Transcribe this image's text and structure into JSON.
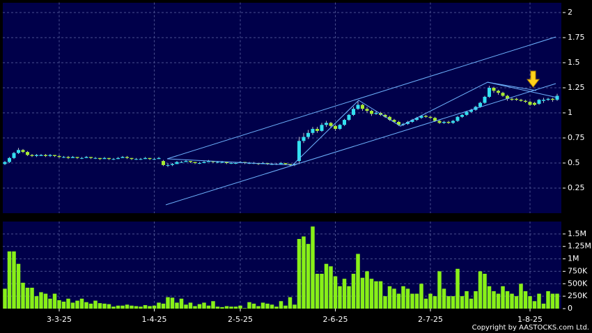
{
  "chart_data": {
    "type": "candlestick",
    "categories": [
      null,
      null,
      null,
      null,
      null,
      null,
      null,
      null,
      null,
      null,
      null,
      null,
      "3-3-25",
      null,
      null,
      null,
      null,
      null,
      null,
      null,
      null,
      null,
      null,
      null,
      null,
      null,
      null,
      null,
      null,
      null,
      null,
      null,
      null,
      "1-4-25",
      null,
      null,
      null,
      null,
      null,
      null,
      null,
      null,
      null,
      null,
      null,
      null,
      null,
      null,
      null,
      null,
      null,
      null,
      "2-5-25",
      null,
      null,
      null,
      null,
      null,
      null,
      null,
      null,
      null,
      null,
      null,
      null,
      null,
      null,
      null,
      null,
      null,
      null,
      null,
      null,
      "2-6-25",
      null,
      null,
      null,
      null,
      null,
      null,
      null,
      null,
      null,
      null,
      null,
      null,
      null,
      null,
      null,
      null,
      null,
      null,
      null,
      null,
      "2-7-25",
      null,
      null,
      null,
      null,
      null,
      null,
      null,
      null,
      null,
      null,
      null,
      null,
      null,
      null,
      null,
      null,
      null,
      null,
      null,
      null,
      null,
      "1-8-25",
      null,
      null,
      null,
      null,
      null,
      null
    ],
    "ohlc": [
      [
        0.49,
        0.52,
        0.48,
        0.51
      ],
      [
        0.51,
        0.56,
        0.5,
        0.55
      ],
      [
        0.55,
        0.61,
        0.54,
        0.6
      ],
      [
        0.6,
        0.65,
        0.59,
        0.63
      ],
      [
        0.63,
        0.64,
        0.6,
        0.61
      ],
      [
        0.61,
        0.62,
        0.57,
        0.58
      ],
      [
        0.58,
        0.59,
        0.56,
        0.57
      ],
      [
        0.57,
        0.59,
        0.56,
        0.58
      ],
      [
        0.57,
        0.59,
        0.57,
        0.58
      ],
      [
        0.58,
        0.59,
        0.56,
        0.57
      ],
      [
        0.57,
        0.59,
        0.56,
        0.58
      ],
      [
        0.58,
        0.58,
        0.56,
        0.57
      ],
      [
        0.57,
        0.58,
        0.55,
        0.56
      ],
      [
        0.56,
        0.57,
        0.55,
        0.56
      ],
      [
        0.56,
        0.57,
        0.54,
        0.55
      ],
      [
        0.55,
        0.57,
        0.55,
        0.56
      ],
      [
        0.56,
        0.56,
        0.54,
        0.55
      ],
      [
        0.55,
        0.56,
        0.54,
        0.55
      ],
      [
        0.55,
        0.57,
        0.55,
        0.56
      ],
      [
        0.56,
        0.56,
        0.54,
        0.55
      ],
      [
        0.55,
        0.56,
        0.54,
        0.55
      ],
      [
        0.55,
        0.55,
        0.53,
        0.54
      ],
      [
        0.54,
        0.56,
        0.54,
        0.55
      ],
      [
        0.55,
        0.55,
        0.53,
        0.54
      ],
      [
        0.54,
        0.55,
        0.53,
        0.54
      ],
      [
        0.54,
        0.56,
        0.54,
        0.55
      ],
      [
        0.55,
        0.57,
        0.55,
        0.56
      ],
      [
        0.56,
        0.57,
        0.54,
        0.55
      ],
      [
        0.55,
        0.55,
        0.53,
        0.54
      ],
      [
        0.54,
        0.55,
        0.53,
        0.54
      ],
      [
        0.54,
        0.55,
        0.53,
        0.54
      ],
      [
        0.54,
        0.56,
        0.54,
        0.55
      ],
      [
        0.55,
        0.55,
        0.53,
        0.54
      ],
      [
        0.54,
        0.55,
        0.53,
        0.54
      ],
      [
        0.54,
        0.56,
        0.54,
        0.55
      ],
      [
        0.52,
        0.53,
        0.47,
        0.48
      ],
      [
        0.48,
        0.5,
        0.46,
        0.48
      ],
      [
        0.48,
        0.5,
        0.47,
        0.49
      ],
      [
        0.49,
        0.52,
        0.49,
        0.51
      ],
      [
        0.51,
        0.52,
        0.5,
        0.51
      ],
      [
        0.51,
        0.53,
        0.51,
        0.52
      ],
      [
        0.52,
        0.52,
        0.5,
        0.51
      ],
      [
        0.51,
        0.51,
        0.49,
        0.5
      ],
      [
        0.5,
        0.51,
        0.49,
        0.5
      ],
      [
        0.5,
        0.52,
        0.5,
        0.51
      ],
      [
        0.51,
        0.53,
        0.51,
        0.52
      ],
      [
        0.52,
        0.52,
        0.5,
        0.51
      ],
      [
        0.51,
        0.52,
        0.5,
        0.51
      ],
      [
        0.51,
        0.52,
        0.5,
        0.51
      ],
      [
        0.51,
        0.51,
        0.49,
        0.5
      ],
      [
        0.5,
        0.51,
        0.49,
        0.5
      ],
      [
        0.5,
        0.51,
        0.49,
        0.5
      ],
      [
        0.5,
        0.52,
        0.5,
        0.51
      ],
      [
        0.51,
        0.51,
        0.49,
        0.5
      ],
      [
        0.5,
        0.51,
        0.49,
        0.5
      ],
      [
        0.5,
        0.51,
        0.49,
        0.5
      ],
      [
        0.5,
        0.5,
        0.48,
        0.49
      ],
      [
        0.49,
        0.51,
        0.49,
        0.5
      ],
      [
        0.5,
        0.5,
        0.48,
        0.49
      ],
      [
        0.49,
        0.5,
        0.48,
        0.49
      ],
      [
        0.49,
        0.5,
        0.48,
        0.49
      ],
      [
        0.49,
        0.51,
        0.49,
        0.5
      ],
      [
        0.5,
        0.5,
        0.48,
        0.49
      ],
      [
        0.49,
        0.49,
        0.47,
        0.48
      ],
      [
        0.48,
        0.5,
        0.47,
        0.49
      ],
      [
        0.52,
        0.76,
        0.49,
        0.72
      ],
      [
        0.72,
        0.8,
        0.7,
        0.76
      ],
      [
        0.76,
        0.83,
        0.74,
        0.8
      ],
      [
        0.8,
        0.86,
        0.78,
        0.84
      ],
      [
        0.84,
        0.86,
        0.8,
        0.82
      ],
      [
        0.82,
        0.9,
        0.81,
        0.88
      ],
      [
        0.88,
        0.92,
        0.86,
        0.9
      ],
      [
        0.9,
        0.91,
        0.85,
        0.87
      ],
      [
        0.87,
        0.88,
        0.82,
        0.84
      ],
      [
        0.84,
        0.89,
        0.83,
        0.88
      ],
      [
        0.88,
        0.94,
        0.87,
        0.93
      ],
      [
        0.93,
        0.99,
        0.92,
        0.98
      ],
      [
        0.98,
        1.06,
        0.97,
        1.04
      ],
      [
        1.04,
        1.12,
        1.03,
        1.08
      ],
      [
        1.08,
        1.09,
        1.02,
        1.04
      ],
      [
        1.04,
        1.06,
        1.0,
        1.02
      ],
      [
        1.02,
        1.03,
        0.97,
        0.99
      ],
      [
        0.99,
        1.02,
        0.98,
        1.0
      ],
      [
        1.0,
        1.01,
        0.97,
        0.98
      ],
      [
        0.98,
        0.99,
        0.95,
        0.96
      ],
      [
        0.96,
        0.97,
        0.92,
        0.93
      ],
      [
        0.93,
        0.94,
        0.9,
        0.91
      ],
      [
        0.91,
        0.92,
        0.87,
        0.88
      ],
      [
        0.88,
        0.9,
        0.87,
        0.89
      ],
      [
        0.89,
        0.92,
        0.88,
        0.91
      ],
      [
        0.91,
        0.94,
        0.9,
        0.93
      ],
      [
        0.93,
        0.96,
        0.92,
        0.95
      ],
      [
        0.95,
        0.98,
        0.94,
        0.97
      ],
      [
        0.97,
        0.98,
        0.95,
        0.96
      ],
      [
        0.96,
        0.97,
        0.94,
        0.95
      ],
      [
        0.95,
        0.96,
        0.91,
        0.92
      ],
      [
        0.92,
        0.93,
        0.89,
        0.9
      ],
      [
        0.9,
        0.92,
        0.89,
        0.91
      ],
      [
        0.91,
        0.92,
        0.89,
        0.9
      ],
      [
        0.9,
        0.93,
        0.89,
        0.92
      ],
      [
        0.92,
        0.97,
        0.91,
        0.96
      ],
      [
        0.96,
        0.99,
        0.95,
        0.98
      ],
      [
        0.98,
        1.02,
        0.97,
        1.01
      ],
      [
        1.01,
        1.04,
        1.0,
        1.03
      ],
      [
        1.03,
        1.07,
        1.02,
        1.06
      ],
      [
        1.06,
        1.11,
        1.05,
        1.1
      ],
      [
        1.1,
        1.17,
        1.09,
        1.16
      ],
      [
        1.16,
        1.27,
        1.15,
        1.25
      ],
      [
        1.25,
        1.26,
        1.2,
        1.22
      ],
      [
        1.22,
        1.23,
        1.18,
        1.2
      ],
      [
        1.2,
        1.21,
        1.16,
        1.17
      ],
      [
        1.17,
        1.18,
        1.12,
        1.14
      ],
      [
        1.14,
        1.15,
        1.12,
        1.13
      ],
      [
        1.14,
        1.15,
        1.12,
        1.13
      ],
      [
        1.13,
        1.14,
        1.11,
        1.12
      ],
      [
        1.12,
        1.13,
        1.1,
        1.11
      ],
      [
        1.11,
        1.12,
        1.07,
        1.08
      ],
      [
        1.1,
        1.11,
        1.07,
        1.08
      ],
      [
        1.09,
        1.14,
        1.08,
        1.13
      ],
      [
        1.12,
        1.15,
        1.1,
        1.13
      ],
      [
        1.13,
        1.15,
        1.12,
        1.14
      ],
      [
        1.14,
        1.15,
        1.11,
        1.13
      ],
      [
        1.13,
        1.19,
        1.12,
        1.17
      ]
    ],
    "volume": [
      400000,
      1150000,
      1150000,
      900000,
      520000,
      420000,
      420000,
      250000,
      330000,
      300000,
      200000,
      300000,
      170000,
      140000,
      200000,
      120000,
      160000,
      200000,
      130000,
      100000,
      160000,
      110000,
      100000,
      90000,
      40000,
      60000,
      60000,
      80000,
      60000,
      50000,
      40000,
      70000,
      50000,
      60000,
      120000,
      100000,
      230000,
      220000,
      120000,
      200000,
      80000,
      120000,
      50000,
      90000,
      120000,
      60000,
      150000,
      40000,
      30000,
      50000,
      40000,
      40000,
      60000,
      10000,
      130000,
      100000,
      50000,
      120000,
      100000,
      80000,
      40000,
      150000,
      60000,
      230000,
      80000,
      1400000,
      1450000,
      1300000,
      1650000,
      700000,
      700000,
      900000,
      850000,
      650000,
      450000,
      600000,
      450000,
      700000,
      1100000,
      620000,
      750000,
      600000,
      550000,
      550000,
      250000,
      450000,
      400000,
      300000,
      450000,
      400000,
      300000,
      300000,
      500000,
      200000,
      300000,
      250000,
      750000,
      400000,
      250000,
      250000,
      800000,
      250000,
      350000,
      200000,
      350000,
      750000,
      700000,
      450000,
      350000,
      300000,
      450000,
      350000,
      300000,
      250000,
      500000,
      350000,
      250000,
      150000,
      300000,
      100000,
      350000,
      300000,
      300000
    ],
    "up_color": "#33e0f0",
    "down_color": "#a8ec30",
    "volume_color": "#88f018",
    "ylim": [
      0,
      2.1
    ],
    "yticks": [
      0.25,
      0.5,
      0.75,
      1,
      1.25,
      1.5,
      1.75,
      2
    ],
    "volume_ylim": [
      0,
      1750000
    ],
    "volume_yticks": [
      0,
      {
        "value": 250000,
        "label": "250K"
      },
      {
        "value": 500000,
        "label": "500K"
      },
      {
        "value": 750000,
        "label": "750K"
      },
      {
        "value": 1000000,
        "label": "1M"
      },
      {
        "value": 1250000,
        "label": "1.25M"
      },
      {
        "value": 1500000,
        "label": "1.5M"
      }
    ],
    "grid": true
  },
  "copyright": "Copyright by AASTOCKS.com Ltd."
}
